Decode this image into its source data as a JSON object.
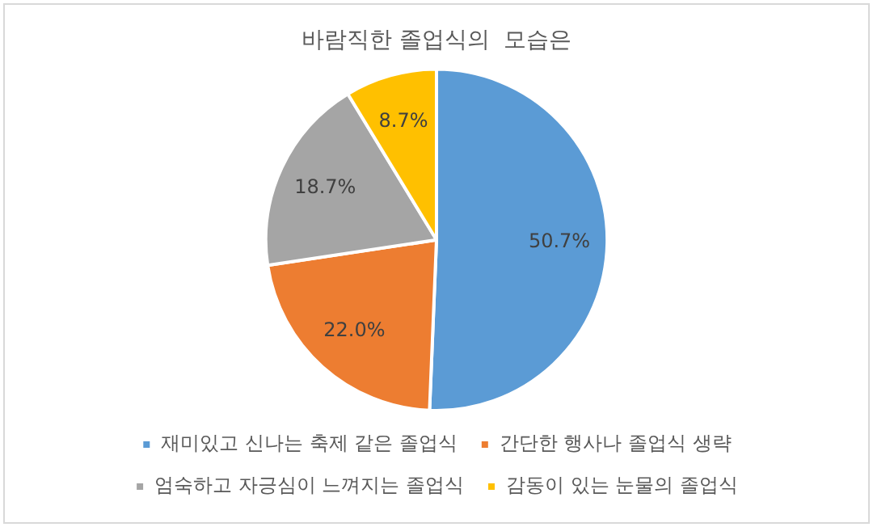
{
  "chart_data": {
    "type": "pie",
    "title": "바람직한 졸업식의  모습은",
    "categories": [
      "재미있고 신나는 축제 같은 졸업식",
      "간단한 행사나 졸업식 생략",
      "엄숙하고 자긍심이 느껴지는 졸업식",
      "감동이 있는 눈물의 졸업식"
    ],
    "values": [
      50.7,
      22.0,
      18.7,
      8.7
    ],
    "value_labels": [
      "50.7%",
      "22.0%",
      "18.7%",
      "8.7%"
    ],
    "colors": [
      "#5b9bd5",
      "#ed7d31",
      "#a5a5a5",
      "#ffc000"
    ],
    "legend": "bottom"
  }
}
